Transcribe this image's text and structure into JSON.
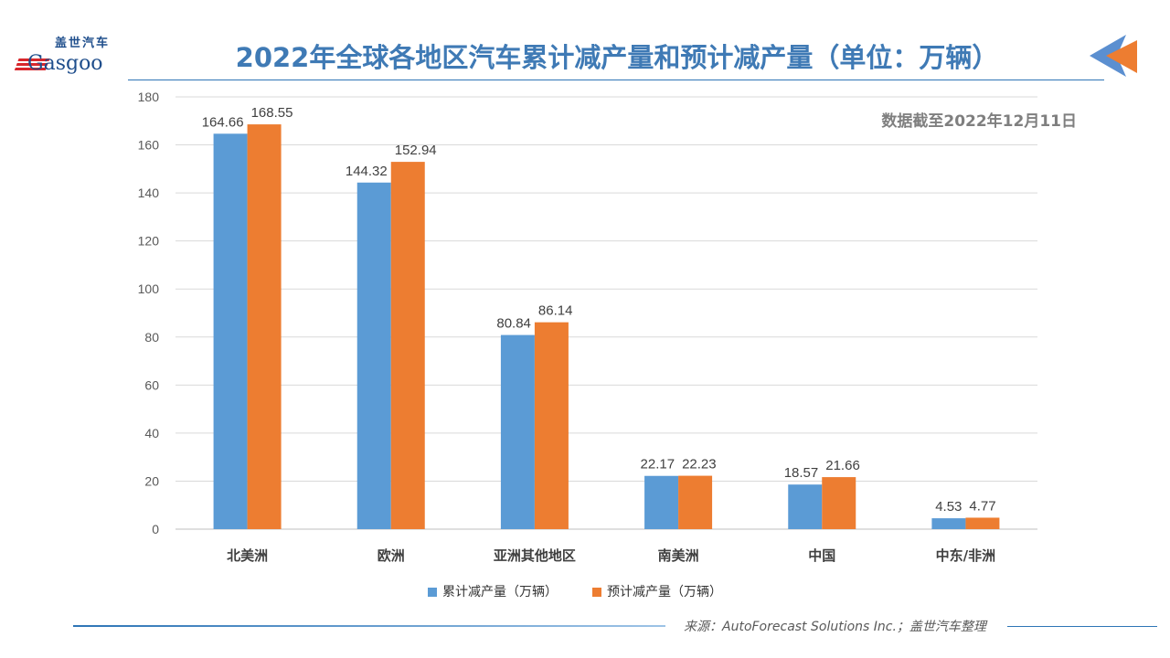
{
  "header": {
    "logo_cn": "盖世汽车",
    "logo_en": "Gasgoo",
    "title": "2022年全球各地区汽车累计减产量和预计减产量（单位：万辆）",
    "note": "数据截至2022年12月11日"
  },
  "footer": {
    "source": "来源：AutoForecast Solutions Inc.；盖世汽车整理"
  },
  "chart_data": {
    "type": "bar",
    "categories": [
      "北美洲",
      "欧洲",
      "亚洲其他地区",
      "南美洲",
      "中国",
      "中东/非洲"
    ],
    "series": [
      {
        "name": "累计减产量（万辆）",
        "color": "#5b9bd5",
        "values": [
          164.66,
          144.32,
          80.84,
          22.17,
          18.57,
          4.53
        ]
      },
      {
        "name": "预计减产量（万辆）",
        "color": "#ed7d31",
        "values": [
          168.55,
          152.94,
          86.14,
          22.23,
          21.66,
          4.77
        ]
      }
    ],
    "ylim": [
      0,
      180
    ],
    "yticks": [
      0,
      20,
      40,
      60,
      80,
      100,
      120,
      140,
      160,
      180
    ],
    "grid": true,
    "legend": "bottom"
  }
}
